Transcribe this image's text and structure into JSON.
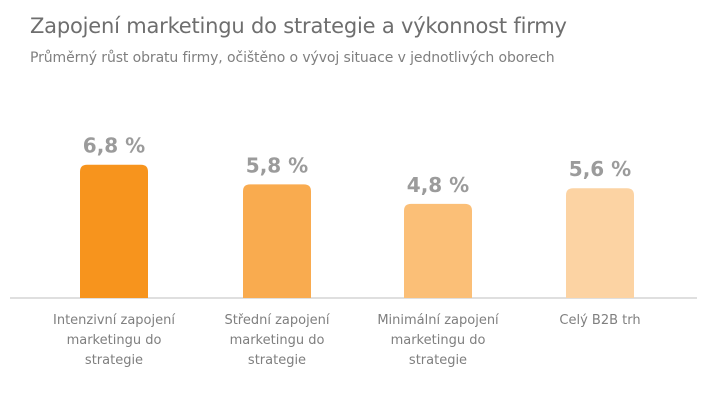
{
  "chart_data": {
    "type": "bar",
    "title": "Zapojení marketingu do strategie a výkonnost firmy",
    "subtitle": "Průměrný růst obratu firmy, očištěno o vývoj situace v jednotlivých oborech",
    "categories": [
      [
        "Intenzivní zapojení",
        "marketingu do",
        "strategie"
      ],
      [
        "Střední zapojení",
        "marketingu do",
        "strategie"
      ],
      [
        "Minimální zapojení",
        "marketingu do",
        "strategie"
      ],
      [
        "Celý B2B trh"
      ]
    ],
    "values": [
      6.8,
      5.8,
      4.8,
      5.6
    ],
    "value_labels": [
      "6,8 %",
      "5,8 %",
      "4,8 %",
      "5,6 %"
    ],
    "colors": [
      "#f7941d",
      "#f9ab4f",
      "#fbbf77",
      "#fcd3a3"
    ],
    "ylim": [
      0,
      7.5
    ],
    "grid": false,
    "legend": false
  }
}
